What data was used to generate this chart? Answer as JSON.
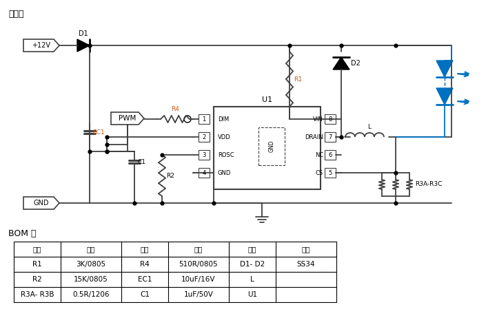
{
  "title": "原理图",
  "bom_title": "BOM 表",
  "bom_headers": [
    "位号",
    "参数",
    "位号",
    "参数",
    "位号",
    "参数"
  ],
  "bom_rows": [
    [
      "R1",
      "3K/0805",
      "R4",
      "510R/0805",
      "D1- D2",
      "SS34"
    ],
    [
      "R2",
      "15K/0805",
      "EC1",
      "10uF/16V",
      "L",
      ""
    ],
    [
      "R3A- R3B",
      "0.5R/1206",
      "C1",
      "1uF/50V",
      "U1",
      ""
    ]
  ],
  "bg_color": "#ffffff",
  "line_color": "#404040",
  "blue_color": "#0070c0",
  "orange_color": "#c55a11",
  "black": "#000000"
}
